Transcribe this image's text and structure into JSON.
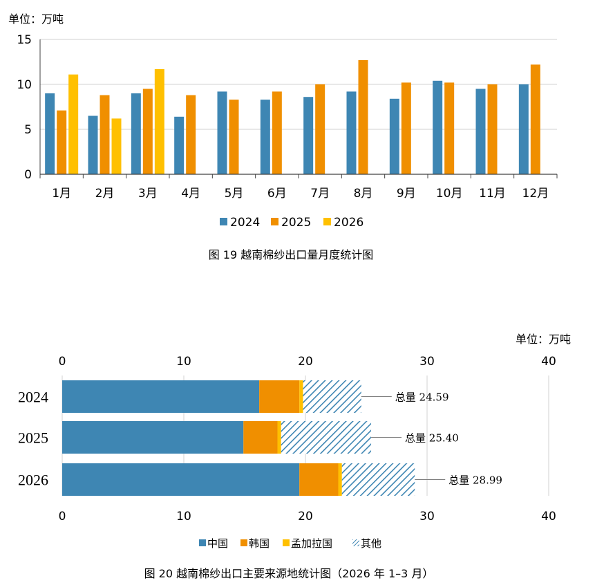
{
  "chart_data": [
    {
      "type": "bar",
      "unit_label": "单位：万吨",
      "categories": [
        "1月",
        "2月",
        "3月",
        "4月",
        "5月",
        "6月",
        "7月",
        "8月",
        "9月",
        "10月",
        "11月",
        "12月"
      ],
      "series": [
        {
          "name": "2024",
          "color": "#3E86B3",
          "values": [
            9.0,
            6.5,
            9.0,
            6.4,
            9.2,
            8.3,
            8.6,
            9.2,
            8.4,
            10.4,
            9.5,
            10.0
          ]
        },
        {
          "name": "2025",
          "color": "#F08F00",
          "values": [
            7.1,
            8.8,
            9.5,
            8.8,
            8.3,
            9.2,
            10.0,
            12.7,
            10.2,
            10.2,
            10.0,
            12.2
          ]
        },
        {
          "name": "2026",
          "color": "#FFC000",
          "values": [
            11.1,
            6.2,
            11.7,
            null,
            null,
            null,
            null,
            null,
            null,
            null,
            null,
            null
          ]
        }
      ],
      "ylim": [
        0,
        15
      ],
      "yticks": [
        0,
        5,
        10,
        15
      ],
      "grid": true,
      "legend_position": "bottom",
      "caption": "图 19   越南棉纱出口量月度统计图"
    },
    {
      "type": "bar",
      "orientation": "horizontal",
      "stacked": true,
      "unit_label": "单位：万吨",
      "categories": [
        "2024",
        "2025",
        "2026"
      ],
      "series": [
        {
          "name": "中国",
          "color": "#3E86B3",
          "pattern": "solid",
          "values": [
            16.2,
            14.9,
            19.5
          ]
        },
        {
          "name": "韩国",
          "color": "#F08F00",
          "pattern": "solid",
          "values": [
            3.3,
            2.8,
            3.2
          ]
        },
        {
          "name": "孟加拉国",
          "color": "#FFC000",
          "pattern": "solid",
          "values": [
            0.3,
            0.3,
            0.3
          ]
        },
        {
          "name": "其他",
          "color": "#3E86B3",
          "pattern": "hatch",
          "values": [
            4.79,
            7.4,
            5.99
          ]
        }
      ],
      "totals": [
        24.59,
        25.4,
        28.99
      ],
      "total_labels": [
        "总量  24.59",
        "总量  25.40",
        "总量  28.99"
      ],
      "xlim": [
        0,
        40
      ],
      "xticks": [
        0,
        10,
        20,
        30,
        40
      ],
      "grid": true,
      "legend_position": "bottom",
      "caption": "图 20   越南棉纱出口主要来源地统计图（2026 年 1–3 月）"
    }
  ]
}
